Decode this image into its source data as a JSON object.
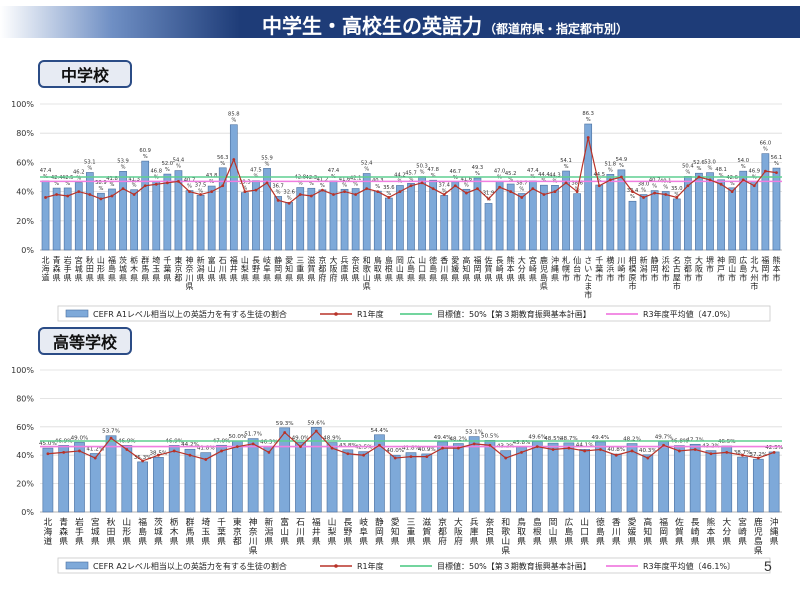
{
  "header": {
    "title": "中学生・高校生の英語力",
    "subtitle": "（都道府県・指定都市別）"
  },
  "sections": {
    "junior": "中学校",
    "senior": "高等学校"
  },
  "page_number": "5",
  "colors": {
    "bar_fill": "#7ea9d9",
    "bar_stroke": "#4b6f9e",
    "r1_line": "#b83228",
    "target_line": "#5fcf91",
    "average_line": "#f07ee0",
    "title_bar": "#1e3c78"
  },
  "chart_data": [
    {
      "type": "bar",
      "ylim": [
        0,
        100
      ],
      "yticks": [
        "0%",
        "20%",
        "40%",
        "60%",
        "80%",
        "100%"
      ],
      "legend": "bottom",
      "categories": [
        "北海道",
        "青森県",
        "岩手県",
        "宮城県",
        "秋田県",
        "山形県",
        "福島県",
        "茨城県",
        "栃木県",
        "群馬県",
        "埼玉県",
        "千葉県",
        "東京都",
        "神奈川県",
        "新潟県",
        "富山県",
        "石川県",
        "福井県",
        "山梨県",
        "長野県",
        "岐阜県",
        "静岡県",
        "愛知県",
        "三重県",
        "滋賀県",
        "京都府",
        "大阪府",
        "兵庫県",
        "奈良県",
        "和歌山県",
        "鳥取県",
        "島根県",
        "岡山県",
        "広島県",
        "山口県",
        "徳島県",
        "香川県",
        "愛媛県",
        "高知県",
        "福岡県",
        "佐賀県",
        "長崎県",
        "熊本県",
        "大分県",
        "宮崎県",
        "鹿児島県",
        "沖縄県",
        "札幌市",
        "仙台市",
        "さいたま市",
        "千葉市",
        "横浜市",
        "川崎市",
        "相模原市",
        "新潟市",
        "静岡市",
        "浜松市",
        "名古屋市",
        "京都市",
        "大阪市",
        "堺市",
        "神戸市",
        "岡山市",
        "広島市",
        "北九州市",
        "福岡市",
        "熊本市"
      ],
      "series": [
        {
          "name": "CEFR A1レベル相当以上の英語力を有する生徒の割合",
          "kind": "bar",
          "values": [
            47.4,
            42.4,
            42.5,
            46.2,
            53.1,
            38.9,
            41.8,
            53.9,
            41.3,
            60.9,
            46.8,
            52.0,
            54.4,
            40.7,
            37.5,
            43.8,
            56.3,
            85.8,
            39.3,
            47.5,
            55.9,
            36.7,
            32.6,
            42.8,
            42.3,
            41.2,
            47.4,
            41.6,
            42.1,
            52.4,
            40.3,
            35.6,
            44.2,
            45.7,
            50.3,
            47.8,
            37.4,
            46.7,
            41.6,
            49.3,
            31.9,
            47.0,
            45.2,
            38.7,
            47.4,
            44.4,
            44.3,
            54.1,
            38.6,
            86.3,
            44.5,
            51.8,
            54.9,
            33.4,
            38.0,
            40.7,
            40.1,
            35.0,
            50.4,
            52.6,
            53.0,
            48.1,
            42.6,
            54.0,
            46.9,
            66.0,
            56.1
          ]
        },
        {
          "name": "R1年度",
          "kind": "line",
          "values": [
            36,
            38,
            37,
            40,
            38,
            35,
            37,
            42,
            38,
            44,
            45,
            46,
            47,
            40,
            38,
            40,
            44,
            62,
            40,
            41,
            46,
            34,
            32,
            38,
            37,
            41,
            38,
            40,
            38,
            42,
            40,
            36,
            40,
            44,
            46,
            42,
            38,
            44,
            39,
            42,
            35,
            43,
            40,
            36,
            42,
            38,
            40,
            46,
            40,
            77,
            44,
            48,
            50,
            40,
            36,
            39,
            38,
            36,
            44,
            50,
            48,
            45,
            40,
            48,
            44,
            54,
            53
          ]
        }
      ],
      "reference_lines": [
        {
          "name": "目標値：50%【第３期教育振興基本計画】",
          "value": 50,
          "color": "#5fcf91"
        },
        {
          "name": "R3年度平均値〔47.0%〕",
          "value": 47.0,
          "color": "#f07ee0"
        }
      ]
    },
    {
      "type": "bar",
      "ylim": [
        0,
        100
      ],
      "yticks": [
        "0%",
        "20%",
        "40%",
        "60%",
        "80%",
        "100%"
      ],
      "legend": "bottom",
      "categories": [
        "北海道",
        "青森県",
        "岩手県",
        "宮城県",
        "秋田県",
        "山形県",
        "福島県",
        "茨城県",
        "栃木県",
        "群馬県",
        "埼玉県",
        "千葉県",
        "東京都",
        "神奈川県",
        "新潟県",
        "富山県",
        "石川県",
        "福井県",
        "山梨県",
        "長野県",
        "岐阜県",
        "静岡県",
        "愛知県",
        "三重県",
        "滋賀県",
        "京都府",
        "大阪府",
        "兵庫県",
        "奈良県",
        "和歌山県",
        "鳥取県",
        "島根県",
        "岡山県",
        "広島県",
        "山口県",
        "徳島県",
        "香川県",
        "愛媛県",
        "高知県",
        "福岡県",
        "佐賀県",
        "長崎県",
        "熊本県",
        "大分県",
        "宮崎県",
        "鹿児島県",
        "沖縄県"
      ],
      "series": [
        {
          "name": "CEFR A2レベル相当以上の英語力を有する生徒の割合",
          "kind": "bar",
          "values": [
            45.0,
            46.9,
            49.0,
            41.2,
            53.7,
            46.9,
            35.3,
            38.5,
            46.9,
            44.2,
            41.8,
            47.0,
            50.0,
            51.7,
            46.3,
            59.3,
            49.0,
            59.6,
            48.9,
            43.8,
            42.5,
            54.4,
            40.0,
            41.8,
            40.9,
            49.4,
            48.2,
            53.1,
            50.5,
            43.2,
            45.8,
            49.6,
            48.5,
            48.7,
            44.1,
            49.4,
            40.8,
            48.2,
            40.3,
            49.7,
            46.8,
            47.7,
            43.2,
            46.5,
            38.7,
            37.2,
            42.3
          ]
        },
        {
          "name": "R1年度",
          "kind": "line",
          "values": [
            41,
            42,
            43,
            38,
            52,
            44,
            36,
            40,
            43,
            40,
            37,
            43,
            46,
            48,
            42,
            56,
            46,
            57,
            45,
            41,
            40,
            47,
            38,
            39,
            39,
            45,
            45,
            48,
            47,
            38,
            42,
            46,
            44,
            45,
            43,
            44,
            40,
            43,
            38,
            47,
            43,
            44,
            41,
            42,
            40,
            38,
            42
          ]
        }
      ],
      "reference_lines": [
        {
          "name": "目標値：50%【第３期教育振興基本計画】",
          "value": 50,
          "color": "#5fcf91"
        },
        {
          "name": "R3年度平均値〔46.1%〕",
          "value": 46.1,
          "color": "#f07ee0"
        }
      ]
    }
  ]
}
